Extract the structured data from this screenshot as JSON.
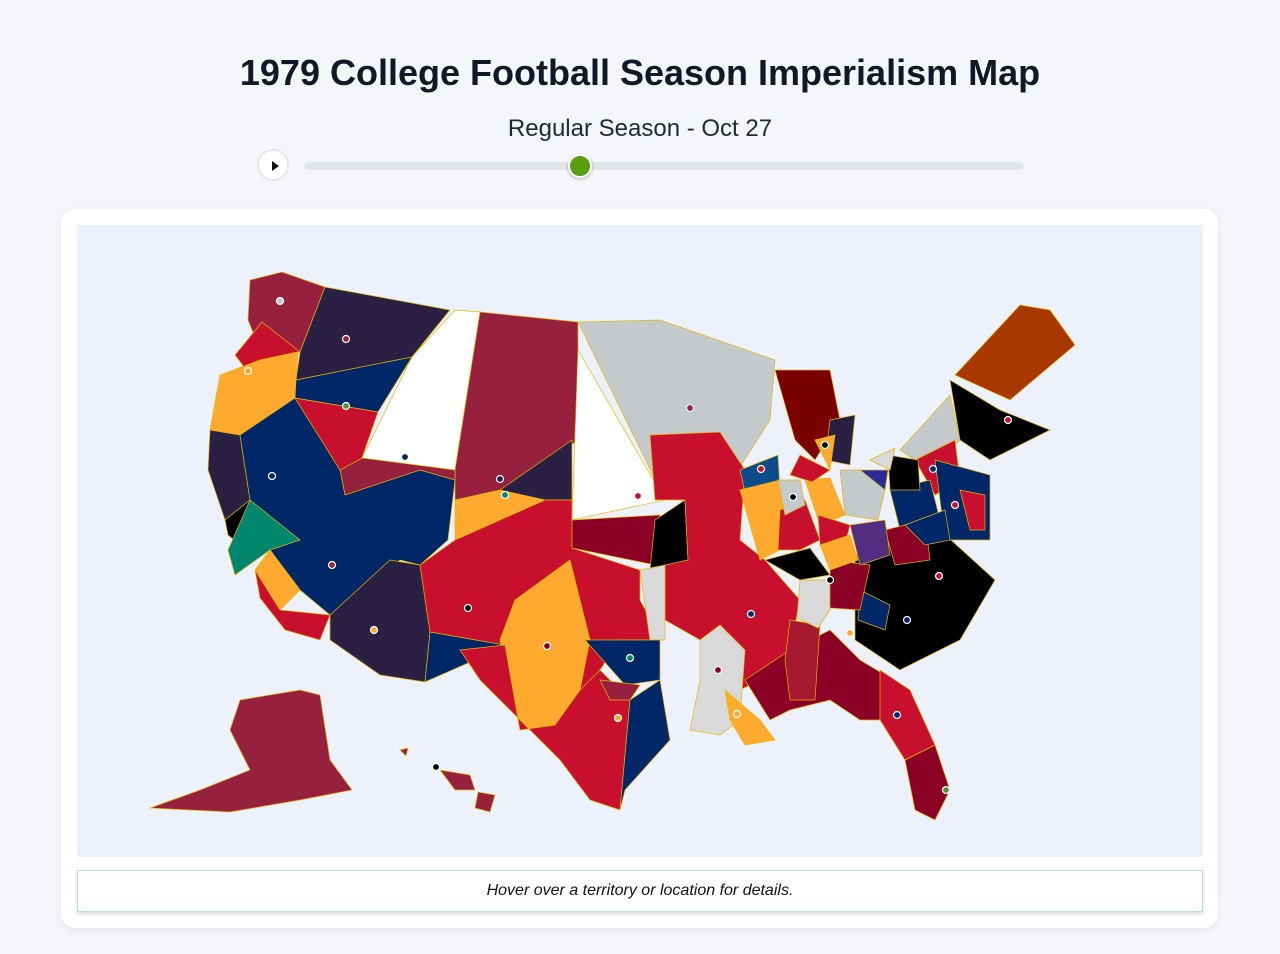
{
  "header": {
    "title": "1979 College Football Season Imperialism Map",
    "subtitle": "Regular Season - Oct 27"
  },
  "info": {
    "text": "Hover over a territory or location for details."
  }
}
